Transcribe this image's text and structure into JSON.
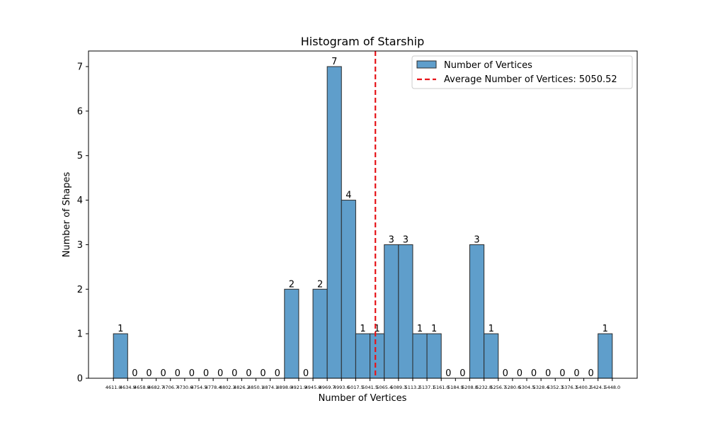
{
  "chart_data": {
    "type": "bar",
    "title": "Histogram of Starship",
    "xlabel": "Number of Vertices",
    "ylabel": "Number of Shapes",
    "bin_edges": [
      4611.0,
      4634.9,
      4658.8,
      4682.7,
      4706.7,
      4730.6,
      4754.5,
      4778.4,
      4802.3,
      4826.2,
      4850.1,
      4874.1,
      4898.0,
      4921.9,
      4945.8,
      4969.7,
      4993.6,
      5017.5,
      5041.5,
      5065.4,
      5089.3,
      5113.2,
      5137.1,
      5161.0,
      5184.9,
      5208.8,
      5232.8,
      5256.7,
      5280.6,
      5304.5,
      5328.4,
      5352.3,
      5376.3,
      5400.2,
      5424.1,
      5448.0
    ],
    "values": [
      1,
      0,
      0,
      0,
      0,
      0,
      0,
      0,
      0,
      0,
      0,
      0,
      2,
      0,
      2,
      7,
      4,
      1,
      1,
      3,
      3,
      1,
      1,
      0,
      0,
      3,
      1,
      0,
      0,
      0,
      0,
      0,
      0,
      0,
      1
    ],
    "xtick_labels": [
      "4611.0",
      "4634.9",
      "4658.8",
      "4682.7",
      "4706.7",
      "4730.6",
      "4754.5",
      "4778.4",
      "4802.3",
      "4826.2",
      "4850.1",
      "4874.1",
      "4898.0",
      "4921.9",
      "4945.8",
      "4969.7",
      "4993.6",
      "5017.5",
      "5041.5",
      "5065.4",
      "5089.3",
      "5113.2",
      "5137.1",
      "5161.0",
      "5184.9",
      "5208.8",
      "5232.8",
      "5256.7",
      "5280.6",
      "5304.5",
      "5328.4",
      "5352.3",
      "5376.3",
      "5400.2",
      "5424.1",
      "5448.0"
    ],
    "yticks": [
      0,
      1,
      2,
      3,
      4,
      5,
      6,
      7
    ],
    "ylim": [
      0,
      7.35
    ],
    "xlim": [
      4569.2,
      5489.8
    ],
    "average_line": {
      "value": 5050.52,
      "label": "Average Number of Vertices: 5050.52",
      "color": "#e6151a"
    },
    "legend": {
      "position": "top-right",
      "entries": [
        "Number of Vertices",
        "Average Number of Vertices: 5050.52"
      ]
    },
    "bar_color": "#5f9ecb",
    "bar_edge_color": "#2b2b2b",
    "grid": false
  }
}
